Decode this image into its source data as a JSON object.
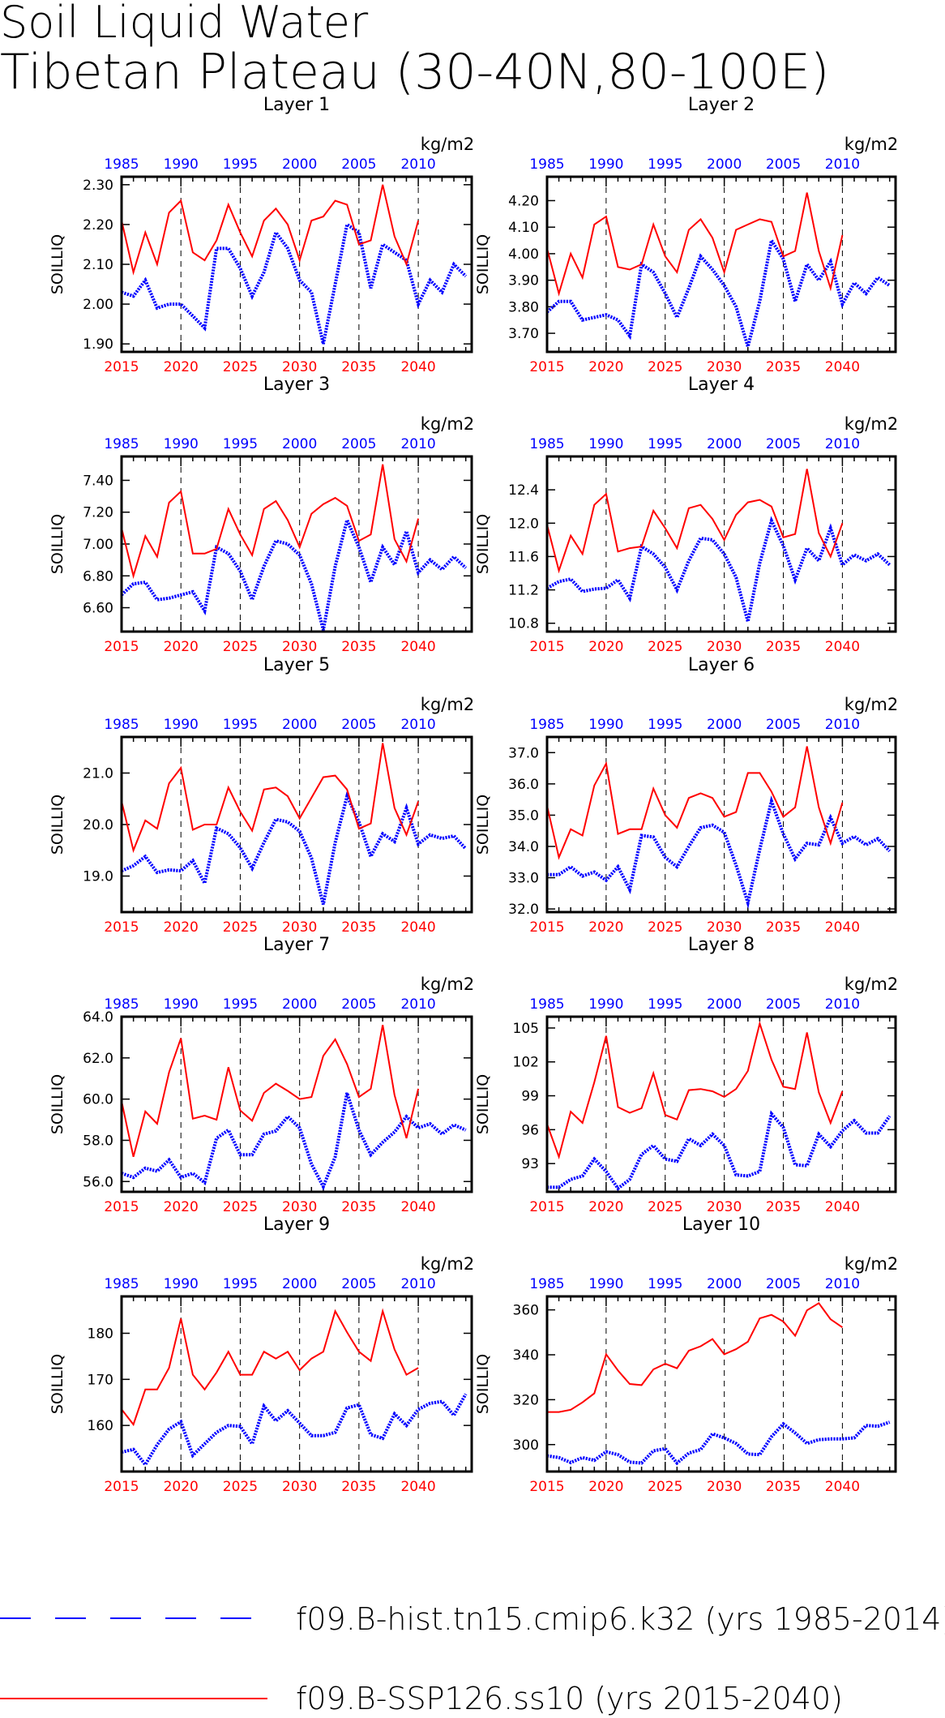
{
  "title_lines": [
    "Soil Liquid Water",
    "Tibetan Plateau (30-40N,80-100E)"
  ],
  "legend": [
    {
      "label": "f09.B-hist.tn15.cmip6.k32 (yrs 1985-2014)",
      "color": "#0000ff",
      "style": "dashed"
    },
    {
      "label": "f09.B-SSP126.ss10 (yrs 2015-2040)",
      "color": "#ff0000",
      "style": "solid"
    }
  ],
  "chart_data": [
    {
      "type": "line",
      "title": "Layer 1",
      "ylabel": "SOILLIQ",
      "units": "kg/m2",
      "ylim": [
        1.88,
        2.32
      ],
      "yticks": [
        1.9,
        2.0,
        2.1,
        2.2,
        2.3
      ],
      "ytick_labels": [
        "1.90",
        "2.00",
        "2.10",
        "2.20",
        "2.30"
      ],
      "hist": [
        2.03,
        2.02,
        2.06,
        1.99,
        2.0,
        2.0,
        1.97,
        1.94,
        2.14,
        2.14,
        2.09,
        2.02,
        2.08,
        2.18,
        2.14,
        2.06,
        2.03,
        1.9,
        2.05,
        2.2,
        2.18,
        2.04,
        2.15,
        2.13,
        2.11,
        2.0,
        2.06,
        2.03,
        2.1,
        2.07
      ],
      "ssp": [
        2.21,
        2.08,
        2.18,
        2.1,
        2.23,
        2.26,
        2.13,
        2.11,
        2.16,
        2.25,
        2.18,
        2.12,
        2.21,
        2.24,
        2.2,
        2.11,
        2.21,
        2.22,
        2.26,
        2.25,
        2.15,
        2.16,
        2.3,
        2.17,
        2.1,
        2.21
      ]
    },
    {
      "type": "line",
      "title": "Layer 2",
      "ylabel": "SOILLIQ",
      "units": "kg/m2",
      "ylim": [
        3.63,
        4.29
      ],
      "yticks": [
        3.7,
        3.8,
        3.9,
        4.0,
        4.1,
        4.2
      ],
      "ytick_labels": [
        "3.70",
        "3.80",
        "3.90",
        "4.00",
        "4.10",
        "4.20"
      ],
      "hist": [
        3.78,
        3.82,
        3.82,
        3.75,
        3.76,
        3.77,
        3.75,
        3.69,
        3.96,
        3.93,
        3.85,
        3.76,
        3.87,
        3.99,
        3.94,
        3.88,
        3.8,
        3.65,
        3.82,
        4.05,
        3.98,
        3.82,
        3.96,
        3.9,
        3.97,
        3.81,
        3.89,
        3.85,
        3.91,
        3.88
      ],
      "ssp": [
        4.02,
        3.85,
        4.0,
        3.91,
        4.11,
        4.14,
        3.95,
        3.94,
        3.96,
        4.11,
        3.99,
        3.93,
        4.09,
        4.13,
        4.06,
        3.93,
        4.09,
        4.11,
        4.13,
        4.12,
        3.99,
        4.01,
        4.23,
        4.01,
        3.87,
        4.07
      ]
    },
    {
      "type": "line",
      "title": "Layer 3",
      "ylabel": "SOILLIQ",
      "units": "kg/m2",
      "ylim": [
        6.45,
        7.55
      ],
      "yticks": [
        6.6,
        6.8,
        7.0,
        7.2,
        7.4
      ],
      "ytick_labels": [
        "6.60",
        "6.80",
        "7.00",
        "7.20",
        "7.40"
      ],
      "hist": [
        6.68,
        6.75,
        6.76,
        6.65,
        6.66,
        6.68,
        6.7,
        6.58,
        6.98,
        6.94,
        6.83,
        6.65,
        6.86,
        7.02,
        7.0,
        6.93,
        6.75,
        6.46,
        6.86,
        7.15,
        6.98,
        6.76,
        6.98,
        6.87,
        7.08,
        6.82,
        6.9,
        6.84,
        6.92,
        6.85
      ],
      "ssp": [
        7.1,
        6.8,
        7.05,
        6.92,
        7.26,
        7.33,
        6.94,
        6.94,
        6.97,
        7.22,
        7.06,
        6.93,
        7.22,
        7.27,
        7.15,
        6.98,
        7.19,
        7.25,
        7.29,
        7.24,
        7.02,
        7.06,
        7.5,
        7.03,
        6.89,
        7.16
      ]
    },
    {
      "type": "line",
      "title": "Layer 4",
      "ylabel": "SOILLIQ",
      "units": "kg/m2",
      "ylim": [
        10.7,
        12.8
      ],
      "yticks": [
        10.8,
        11.2,
        11.6,
        12.0,
        12.4
      ],
      "ytick_labels": [
        "10.8",
        "11.2",
        "11.6",
        "12.0",
        "12.4"
      ],
      "hist": [
        11.22,
        11.3,
        11.33,
        11.18,
        11.21,
        11.22,
        11.32,
        11.1,
        11.72,
        11.63,
        11.47,
        11.2,
        11.55,
        11.82,
        11.8,
        11.63,
        11.35,
        10.82,
        11.52,
        12.03,
        11.73,
        11.32,
        11.7,
        11.55,
        11.94,
        11.5,
        11.62,
        11.55,
        11.63,
        11.5
      ],
      "ssp": [
        11.98,
        11.43,
        11.85,
        11.63,
        12.22,
        12.35,
        11.66,
        11.7,
        11.72,
        12.15,
        11.94,
        11.7,
        12.18,
        12.22,
        12.05,
        11.8,
        12.1,
        12.25,
        12.28,
        12.2,
        11.83,
        11.87,
        12.65,
        11.88,
        11.6,
        12.0
      ]
    },
    {
      "type": "line",
      "title": "Layer 5",
      "ylabel": "SOILLIQ",
      "units": "kg/m2",
      "ylim": [
        18.3,
        21.7
      ],
      "yticks": [
        19.0,
        20.0,
        21.0
      ],
      "ytick_labels": [
        "19.0",
        "20.0",
        "21.0"
      ],
      "hist": [
        19.1,
        19.2,
        19.38,
        19.07,
        19.12,
        19.1,
        19.3,
        18.86,
        19.93,
        19.82,
        19.55,
        19.15,
        19.65,
        20.1,
        20.05,
        19.87,
        19.35,
        18.45,
        19.65,
        20.55,
        20.05,
        19.38,
        19.82,
        19.67,
        20.32,
        19.62,
        19.8,
        19.73,
        19.78,
        19.53
      ],
      "ssp": [
        20.45,
        19.5,
        20.08,
        19.92,
        20.8,
        21.1,
        19.9,
        20.0,
        20.0,
        20.72,
        20.25,
        19.88,
        20.68,
        20.72,
        20.55,
        20.12,
        20.52,
        20.92,
        20.95,
        20.68,
        19.92,
        20.02,
        21.58,
        20.32,
        19.8,
        20.45
      ]
    },
    {
      "type": "line",
      "title": "Layer 6",
      "ylabel": "SOILLIQ",
      "units": "kg/m2",
      "ylim": [
        31.9,
        37.5
      ],
      "yticks": [
        32.0,
        33.0,
        34.0,
        35.0,
        36.0,
        37.0
      ],
      "ytick_labels": [
        "32.0",
        "33.0",
        "34.0",
        "35.0",
        "36.0",
        "37.0"
      ],
      "hist": [
        33.1,
        33.1,
        33.35,
        33.05,
        33.18,
        32.92,
        33.35,
        32.62,
        34.35,
        34.3,
        33.65,
        33.35,
        34.0,
        34.6,
        34.68,
        34.45,
        33.4,
        32.2,
        33.9,
        35.45,
        34.4,
        33.6,
        34.1,
        34.05,
        34.92,
        34.1,
        34.32,
        34.05,
        34.25,
        33.85
      ],
      "ssp": [
        35.3,
        33.65,
        34.55,
        34.35,
        35.95,
        36.65,
        34.4,
        34.55,
        34.55,
        35.85,
        35.0,
        34.6,
        35.55,
        35.7,
        35.55,
        34.95,
        35.1,
        36.35,
        36.35,
        35.75,
        34.95,
        35.25,
        37.2,
        35.25,
        34.1,
        35.4
      ]
    },
    {
      "type": "line",
      "title": "Layer 7",
      "ylabel": "SOILLIQ",
      "units": "kg/m2",
      "ylim": [
        55.5,
        64.0
      ],
      "yticks": [
        56.0,
        58.0,
        60.0,
        62.0,
        64.0
      ],
      "ytick_labels": [
        "56.0",
        "58.0",
        "60.0",
        "62.0",
        "64.0"
      ],
      "hist": [
        56.4,
        56.2,
        56.65,
        56.5,
        57.05,
        56.2,
        56.4,
        55.95,
        58.1,
        58.5,
        57.3,
        57.3,
        58.3,
        58.45,
        59.15,
        58.6,
        56.85,
        55.75,
        57.2,
        60.3,
        58.5,
        57.3,
        57.9,
        58.4,
        59.15,
        58.6,
        58.8,
        58.3,
        58.75,
        58.5
      ],
      "ssp": [
        59.9,
        57.2,
        59.4,
        58.8,
        61.3,
        62.95,
        59.05,
        59.2,
        59.0,
        61.55,
        59.45,
        58.95,
        60.3,
        60.75,
        60.4,
        60.0,
        60.1,
        62.1,
        62.9,
        61.7,
        60.1,
        60.5,
        63.6,
        60.2,
        58.1,
        60.5
      ]
    },
    {
      "type": "line",
      "title": "Layer 8",
      "ylabel": "SOILLIQ",
      "units": "kg/m2",
      "ylim": [
        90.5,
        106
      ],
      "yticks": [
        93,
        96,
        99,
        102,
        105
      ],
      "ytick_labels": [
        "93",
        "96",
        "99",
        "102",
        "105"
      ],
      "hist": [
        90.9,
        90.9,
        91.6,
        91.9,
        93.4,
        92.3,
        90.8,
        91.6,
        93.8,
        94.6,
        93.4,
        93.2,
        95.2,
        94.6,
        95.6,
        94.6,
        92.0,
        91.9,
        92.3,
        97.4,
        96.2,
        92.9,
        92.8,
        95.6,
        94.5,
        95.9,
        96.8,
        95.7,
        95.7,
        97.2
      ],
      "ssp": [
        96.5,
        93.6,
        97.6,
        96.6,
        100.2,
        104.3,
        98.0,
        97.5,
        97.9,
        101.0,
        97.3,
        96.9,
        99.5,
        99.6,
        99.4,
        98.9,
        99.6,
        101.2,
        105.4,
        102.2,
        99.8,
        99.6,
        104.6,
        99.3,
        96.6,
        99.4
      ]
    },
    {
      "type": "line",
      "title": "Layer 9",
      "ylabel": "SOILLIQ",
      "units": "kg/m2",
      "ylim": [
        150,
        188
      ],
      "yticks": [
        160,
        170,
        180
      ],
      "ytick_labels": [
        "160",
        "170",
        "180"
      ],
      "hist": [
        154.2,
        154.8,
        151.5,
        155.8,
        159.2,
        160.8,
        153.5,
        156.0,
        158.5,
        160.0,
        159.8,
        156.0,
        164.2,
        161.0,
        163.2,
        160.5,
        157.8,
        157.8,
        158.5,
        163.8,
        164.5,
        158.0,
        157.2,
        162.5,
        160.0,
        163.5,
        164.8,
        165.2,
        162.2,
        166.8
      ],
      "ssp": [
        163.5,
        160.2,
        167.8,
        167.8,
        172.5,
        183.2,
        171.0,
        167.8,
        171.5,
        176.0,
        171.0,
        171.0,
        176.0,
        174.5,
        176.0,
        172.0,
        174.5,
        176.0,
        184.8,
        180.2,
        176.0,
        174.0,
        184.8,
        176.5,
        171.0,
        172.5
      ]
    },
    {
      "type": "line",
      "title": "Layer 10",
      "ylabel": "SOILLIQ",
      "units": "kg/m2",
      "ylim": [
        288,
        366
      ],
      "yticks": [
        300,
        320,
        340,
        360
      ],
      "ytick_labels": [
        "300",
        "320",
        "340",
        "360"
      ],
      "hist": [
        295.0,
        294.2,
        292.0,
        294.2,
        293.0,
        296.8,
        295.5,
        292.2,
        291.8,
        297.2,
        298.2,
        291.8,
        296.2,
        297.8,
        304.8,
        303.0,
        300.5,
        295.8,
        295.5,
        303.5,
        309.2,
        305.2,
        300.5,
        302.2,
        302.5,
        302.5,
        303.0,
        308.5,
        308.2,
        310.0
      ],
      "ssp": [
        314.5,
        314.5,
        315.5,
        318.8,
        322.8,
        340.2,
        333.0,
        327.0,
        326.5,
        333.5,
        336.0,
        334.0,
        341.8,
        343.8,
        347.0,
        340.2,
        342.5,
        345.8,
        356.2,
        357.8,
        354.8,
        348.5,
        359.8,
        363.0,
        355.8,
        352.2
      ]
    }
  ],
  "axes": {
    "bottom_ticks": [
      2015,
      2020,
      2025,
      2030,
      2035,
      2040
    ],
    "bottom_labels": [
      "2015",
      "2020",
      "2025",
      "2030",
      "2035",
      "2040"
    ],
    "top_labels": [
      "1985",
      "1990",
      "1995",
      "2000",
      "2005",
      "2010"
    ],
    "hist_color": "#0000ff",
    "ssp_color": "#ff0000"
  }
}
